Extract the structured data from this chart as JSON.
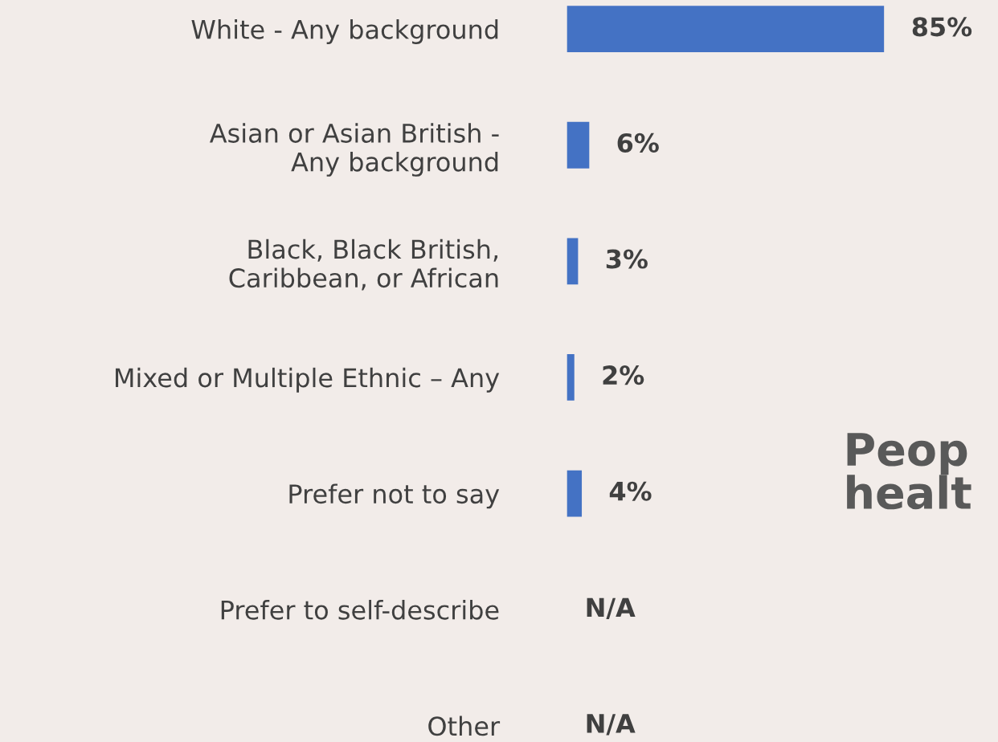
{
  "chart_data": {
    "type": "bar",
    "orientation": "horizontal",
    "categories": [
      "White - Any background",
      "Asian or Asian British -\nAny background",
      "Black, Black British,\nCaribbean, or African",
      "Mixed or Multiple Ethnic – Any",
      "Prefer not to say",
      "Prefer to self-describe",
      "Other"
    ],
    "values": [
      85,
      6,
      3,
      2,
      4,
      null,
      null
    ],
    "value_labels": [
      "85%",
      "6%",
      "3%",
      "2%",
      "4%",
      "N/A",
      "N/A"
    ],
    "color": "#4472c4",
    "tick_labels": "y",
    "grid": false,
    "legend": false,
    "annotations": [
      "Peop\nhealt"
    ]
  }
}
